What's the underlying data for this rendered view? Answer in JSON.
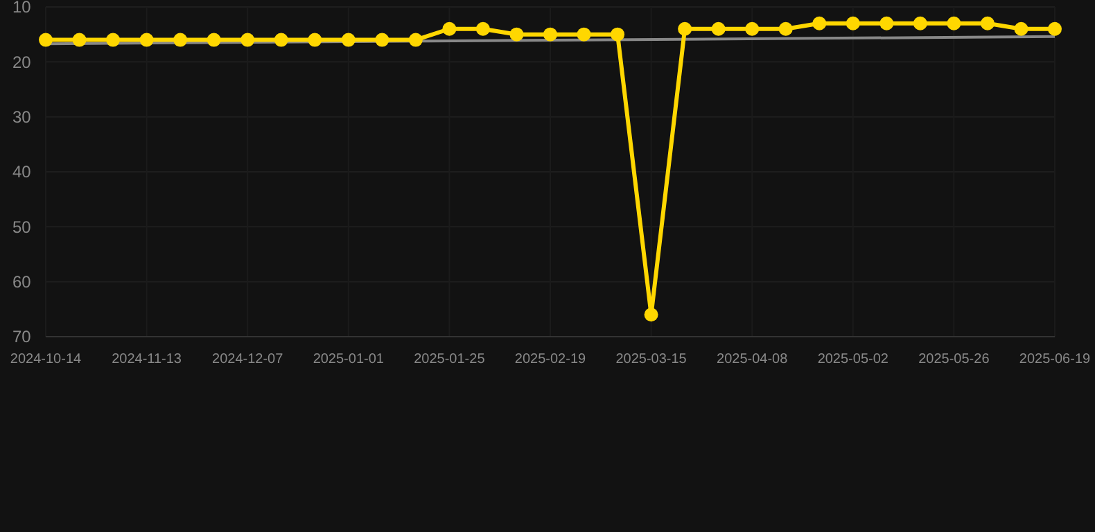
{
  "chart_data": {
    "type": "line",
    "categories": [
      "2024-10-14",
      null,
      null,
      "2024-11-13",
      null,
      null,
      "2024-12-07",
      null,
      null,
      "2025-01-01",
      null,
      null,
      "2025-01-25",
      null,
      null,
      "2025-02-19",
      null,
      null,
      "2025-03-15",
      null,
      null,
      "2025-04-08",
      null,
      null,
      "2025-05-02",
      null,
      null,
      "2025-05-26",
      null,
      null,
      "2025-06-19"
    ],
    "series": [
      {
        "color": "#ffd700",
        "marker": "circle",
        "values": [
          16,
          16,
          16,
          16,
          16,
          16,
          16,
          16,
          16,
          16,
          16,
          16,
          14,
          14,
          15,
          15,
          15,
          15,
          66,
          14,
          14,
          14,
          14,
          13,
          13,
          13,
          13,
          13,
          13,
          14,
          14
        ]
      },
      {
        "type": "line",
        "color": "#888888",
        "marker": "none",
        "values": [
          16.7,
          null,
          null,
          null,
          null,
          null,
          null,
          null,
          null,
          null,
          null,
          null,
          null,
          null,
          null,
          null,
          null,
          null,
          null,
          null,
          null,
          null,
          null,
          null,
          null,
          null,
          null,
          null,
          null,
          null,
          15.4
        ]
      }
    ],
    "ylim": [
      70,
      10
    ],
    "yticks": [
      10,
      20,
      30,
      40,
      50,
      60,
      70
    ],
    "grid": true
  }
}
